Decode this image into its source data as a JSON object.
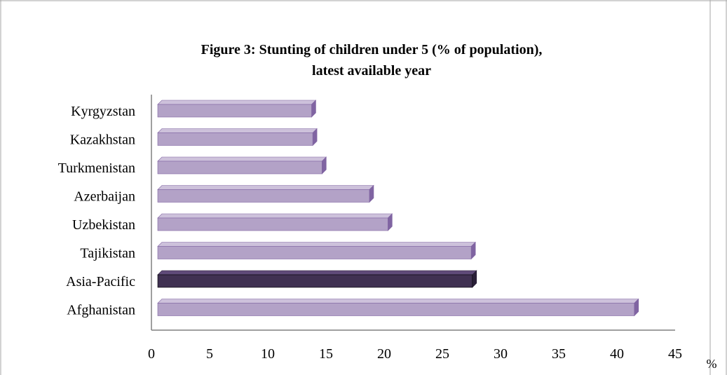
{
  "chart_data": {
    "type": "bar",
    "orientation": "horizontal",
    "title": "Figure 3: Stunting of children under 5 (% of population),",
    "subtitle": "latest available year",
    "categories": [
      "Kyrgyzstan",
      "Kazakhstan",
      "Turkmenistan",
      "Azerbaijan",
      "Uzbekistan",
      "Tajikistan",
      "Asia-Pacific",
      "Afghanistan"
    ],
    "values": [
      13.3,
      13.4,
      14.2,
      18.3,
      19.9,
      27.1,
      27.2,
      41.2
    ],
    "highlight_category": "Asia-Pacific",
    "xlim": [
      0,
      45
    ],
    "xticks": [
      "0",
      "5",
      "10",
      "15",
      "20",
      "25",
      "30",
      "35",
      "40",
      "45"
    ],
    "xunit": "%",
    "grid": false,
    "legend": "none",
    "colors": {
      "bar_front": "#B3A2C7",
      "bar_top": "#CDC1DB",
      "bar_side": "#8064A2",
      "highlight_front": "#403152",
      "highlight_top": "#5F4B79",
      "highlight_side": "#2A1F38",
      "axis": "#808080",
      "frame": "#A6A6A6"
    }
  }
}
